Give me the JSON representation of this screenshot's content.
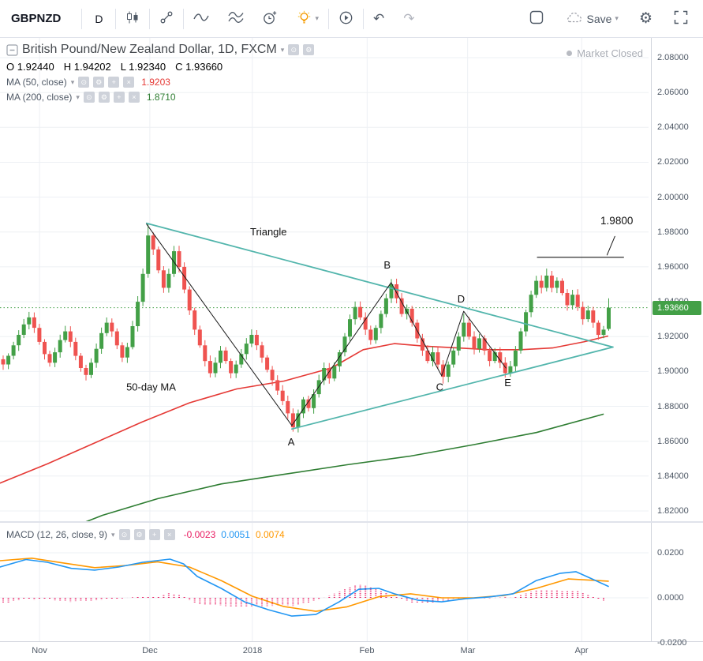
{
  "toolbar": {
    "symbol": "GBPNZD",
    "interval": "D",
    "save_label": "Save",
    "left_icons": [
      "chart-style-candles",
      "compare",
      "line-tools",
      "indicators",
      "alerts",
      "ideas",
      "bar-replay",
      "undo",
      "redo"
    ],
    "right_icons": [
      "snapshot",
      "save-cloud",
      "settings",
      "fullscreen"
    ]
  },
  "legend": {
    "title": "British Pound/New Zealand Dollar, 1D, FXCM",
    "market_status": "Market Closed",
    "icons": {
      "caret": "▾",
      "eye": "⊙",
      "gear": "⚙",
      "add": "+",
      "close": "×"
    },
    "ohlc": {
      "o_label": "O",
      "o": "1.92440",
      "h_label": "H",
      "h": "1.94202",
      "l_label": "L",
      "l": "1.92340",
      "c_label": "C",
      "c": "1.93660"
    },
    "ma50": {
      "label": "MA (50, close)",
      "value": "1.9203"
    },
    "ma200": {
      "label": "MA (200, close)",
      "value": "1.8710"
    },
    "macd": {
      "label": "MACD (12, 26, close, 9)",
      "hist": "-0.0023",
      "macd": "0.0051",
      "signal": "0.0074"
    }
  },
  "chart_data": {
    "type": "candlestick",
    "symbol": "GBPNZD",
    "interval": "1D",
    "exchange": "FXCM",
    "current_price": "1.93660",
    "price_axis": {
      "tick_labels": [
        "2.08000",
        "2.06000",
        "2.04000",
        "2.02000",
        "2.00000",
        "1.98000",
        "1.96000",
        "1.94000",
        "1.92000",
        "1.90000",
        "1.88000",
        "1.86000",
        "1.84000",
        "1.82000"
      ],
      "tick_vals": [
        2.08,
        2.06,
        2.04,
        2.02,
        2.0,
        1.98,
        1.96,
        1.94,
        1.92,
        1.9,
        1.88,
        1.86,
        1.84,
        1.82
      ]
    },
    "time_axis": {
      "labels": [
        "Nov",
        "Dec",
        "2018",
        "Feb",
        "Mar",
        "Apr"
      ],
      "fracs": [
        0.061,
        0.231,
        0.389,
        0.566,
        0.721,
        0.897
      ]
    },
    "first_open": 1.907,
    "closes": [
      1.904,
      1.909,
      1.915,
      1.921,
      1.927,
      1.931,
      1.925,
      1.917,
      1.91,
      1.905,
      1.911,
      1.918,
      1.923,
      1.917,
      1.909,
      1.902,
      1.898,
      1.905,
      1.913,
      1.922,
      1.928,
      1.923,
      1.915,
      1.908,
      1.914,
      1.926,
      1.94,
      1.956,
      1.978,
      1.97,
      1.958,
      1.948,
      1.956,
      1.969,
      1.96,
      1.947,
      1.935,
      1.924,
      1.915,
      1.906,
      1.899,
      1.905,
      1.912,
      1.906,
      1.899,
      1.904,
      1.91,
      1.916,
      1.921,
      1.915,
      1.908,
      1.901,
      1.895,
      1.889,
      1.883,
      1.876,
      1.868,
      1.876,
      1.884,
      1.879,
      1.887,
      1.895,
      1.902,
      1.896,
      1.903,
      1.911,
      1.92,
      1.93,
      1.937,
      1.931,
      1.924,
      1.918,
      1.925,
      1.933,
      1.942,
      1.95,
      1.942,
      1.933,
      1.936,
      1.928,
      1.919,
      1.912,
      1.906,
      1.911,
      1.904,
      1.897,
      1.904,
      1.912,
      1.92,
      1.928,
      1.92,
      1.913,
      1.919,
      1.912,
      1.906,
      1.911,
      1.905,
      1.899,
      1.903,
      1.912,
      1.923,
      1.934,
      1.944,
      1.952,
      1.948,
      1.955,
      1.948,
      1.952,
      1.945,
      1.938,
      1.944,
      1.937,
      1.93,
      1.935,
      1.928,
      1.921,
      1.924,
      1.9366
    ],
    "candle_overrides": {
      "28": {
        "h": 1.985
      },
      "33": {
        "h": 1.972
      },
      "56": {
        "l": 1.8655
      },
      "75": {
        "h": 1.953
      },
      "85": {
        "l": 1.893
      },
      "89": {
        "h": 1.933
      },
      "98": {
        "l": 1.897
      },
      "105": {
        "h": 1.959
      },
      "117": {
        "o": 1.9244,
        "h": 1.942,
        "l": 1.9234,
        "c": 1.9366
      }
    },
    "ma50_points": [
      [
        0,
        1.836
      ],
      [
        0.073,
        1.847
      ],
      [
        0.146,
        1.859
      ],
      [
        0.219,
        1.871
      ],
      [
        0.292,
        1.882
      ],
      [
        0.365,
        1.89
      ],
      [
        0.438,
        1.8945
      ],
      [
        0.511,
        1.902
      ],
      [
        0.56,
        1.9125
      ],
      [
        0.608,
        1.916
      ],
      [
        0.657,
        1.9145
      ],
      [
        0.706,
        1.9135
      ],
      [
        0.754,
        1.9125
      ],
      [
        0.803,
        1.9125
      ],
      [
        0.852,
        1.9135
      ],
      [
        0.9,
        1.917
      ],
      [
        0.937,
        1.9203
      ]
    ],
    "ma200_points": [
      [
        0.103,
        1.8095
      ],
      [
        0.158,
        1.8175
      ],
      [
        0.243,
        1.827
      ],
      [
        0.341,
        1.8355
      ],
      [
        0.438,
        1.841
      ],
      [
        0.535,
        1.8465
      ],
      [
        0.633,
        1.8515
      ],
      [
        0.73,
        1.858
      ],
      [
        0.827,
        1.865
      ],
      [
        0.93,
        1.8755
      ]
    ],
    "triangle_upper": [
      [
        0.226,
        1.985
      ],
      [
        0.945,
        1.914
      ]
    ],
    "triangle_lower": [
      [
        0.45,
        1.867
      ],
      [
        0.945,
        1.914
      ]
    ],
    "zigzag": [
      [
        0.226,
        1.9845
      ],
      [
        0.45,
        1.869
      ],
      [
        0.603,
        1.951
      ],
      [
        0.681,
        1.8975
      ],
      [
        0.715,
        1.9345
      ],
      [
        0.78,
        1.902
      ]
    ],
    "annotations": [
      {
        "text": "Triangle",
        "x": 0.414,
        "price": 1.978
      },
      {
        "text": "50-day MA",
        "x": 0.233,
        "price": 1.889
      },
      {
        "text": "A",
        "x": 0.449,
        "price": 1.8575
      },
      {
        "text": "B",
        "x": 0.597,
        "price": 1.959
      },
      {
        "text": "C",
        "x": 0.678,
        "price": 1.889
      },
      {
        "text": "D",
        "x": 0.711,
        "price": 1.9395
      },
      {
        "text": "E",
        "x": 0.783,
        "price": 1.8915
      }
    ],
    "target": {
      "label": "1.9800",
      "label_x": 0.951,
      "label_price": 1.9845,
      "line_x1": 0.828,
      "line_x2": 0.962,
      "line_price": 1.9655,
      "pointer": [
        [
          0.948,
          1.9775
        ],
        [
          0.936,
          1.9668
        ]
      ]
    },
    "macd": {
      "tick_labels": [
        "0.0200",
        "0.0000",
        "-0.0200"
      ],
      "tick_vals": [
        0.02,
        0,
        -0.02
      ],
      "line": [
        [
          0,
          0.0137
        ],
        [
          0.04,
          0.017
        ],
        [
          0.073,
          0.0158
        ],
        [
          0.11,
          0.0131
        ],
        [
          0.146,
          0.0123
        ],
        [
          0.183,
          0.0137
        ],
        [
          0.22,
          0.0158
        ],
        [
          0.262,
          0.0172
        ],
        [
          0.283,
          0.0151
        ],
        [
          0.304,
          0.0095
        ],
        [
          0.341,
          0.0042
        ],
        [
          0.377,
          -0.0018
        ],
        [
          0.414,
          -0.0053
        ],
        [
          0.45,
          -0.0081
        ],
        [
          0.487,
          -0.0074
        ],
        [
          0.523,
          -0.0018
        ],
        [
          0.553,
          0.0038
        ],
        [
          0.584,
          0.0042
        ],
        [
          0.608,
          0.0018
        ],
        [
          0.645,
          -0.0011
        ],
        [
          0.681,
          -0.0018
        ],
        [
          0.718,
          -0.0004
        ],
        [
          0.754,
          0.0004
        ],
        [
          0.791,
          0.0018
        ],
        [
          0.827,
          0.0077
        ],
        [
          0.864,
          0.0109
        ],
        [
          0.888,
          0.0116
        ],
        [
          0.913,
          0.0084
        ],
        [
          0.938,
          0.0051
        ]
      ],
      "signal": [
        [
          0,
          0.0165
        ],
        [
          0.049,
          0.0176
        ],
        [
          0.097,
          0.0155
        ],
        [
          0.146,
          0.0134
        ],
        [
          0.195,
          0.0144
        ],
        [
          0.243,
          0.016
        ],
        [
          0.292,
          0.0137
        ],
        [
          0.341,
          0.0077
        ],
        [
          0.389,
          0.0007
        ],
        [
          0.438,
          -0.0039
        ],
        [
          0.487,
          -0.006
        ],
        [
          0.535,
          -0.004
        ],
        [
          0.584,
          0.0005
        ],
        [
          0.633,
          0.0018
        ],
        [
          0.681,
          0.0
        ],
        [
          0.73,
          0.0
        ],
        [
          0.779,
          0.0011
        ],
        [
          0.827,
          0.0042
        ],
        [
          0.876,
          0.0084
        ],
        [
          0.938,
          0.0074
        ]
      ],
      "last_hist": -0.0023,
      "last_macd": 0.0051,
      "last_signal": 0.0074
    },
    "colors": {
      "up": "#43a047",
      "down": "#ef5350",
      "ohlc_text": "#2f9e4f",
      "ma50": "#e53935",
      "ma200": "#2e7d32",
      "triangle": "#52b5ac",
      "zigzag": "#1a1a1a",
      "macd_line": "#2196f3",
      "macd_signal": "#ff9800",
      "macd_hist": "#e91e63",
      "current": "#43a047",
      "grid": "#edf0f4"
    }
  }
}
